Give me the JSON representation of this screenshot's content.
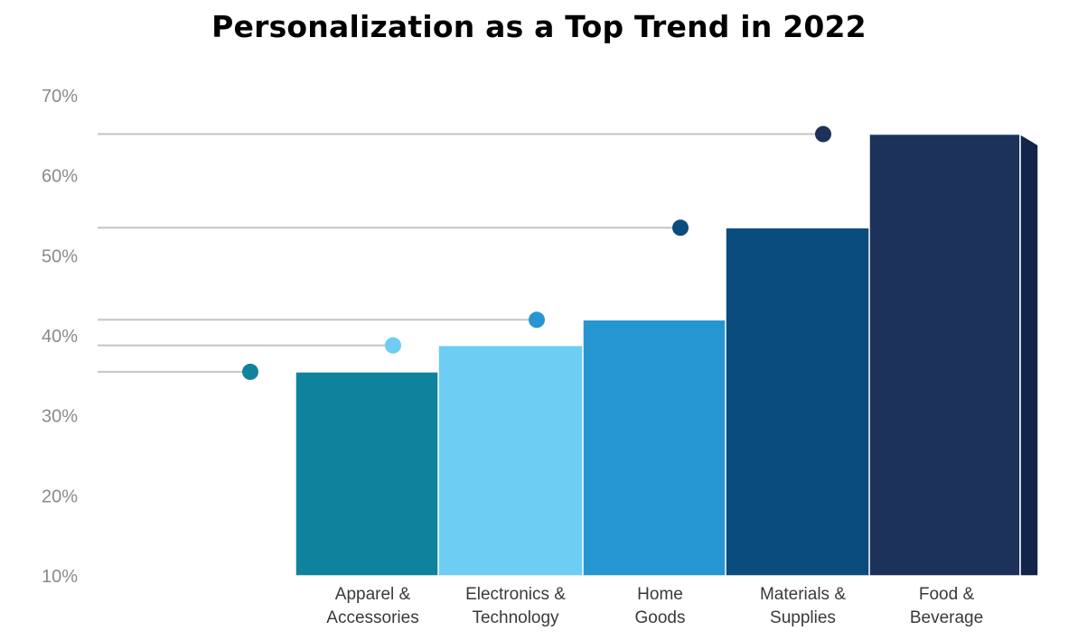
{
  "chart_data": {
    "type": "bar",
    "title": "Personalization as a Top Trend in 2022",
    "categories": [
      [
        "Apparel &",
        "Accessories"
      ],
      [
        "Electronics &",
        "Technology"
      ],
      [
        "Home",
        "Goods"
      ],
      [
        "Materials &",
        "Supplies"
      ],
      [
        "Food &",
        "Beverage"
      ]
    ],
    "values": [
      35.5,
      38.8,
      42.0,
      53.5,
      65.2
    ],
    "yticks": [
      "10%",
      "20%",
      "30%",
      "40%",
      "50%",
      "60%",
      "70%"
    ],
    "ylim": [
      10,
      70
    ],
    "xlabel": "",
    "ylabel": "",
    "grid": false,
    "legend": "none",
    "colors": {
      "front": [
        "#0f829e",
        "#6dcdf2",
        "#2596d2",
        "#0a4c7d",
        "#1c325b"
      ],
      "side": [
        "#1a5f77",
        "#5aaace",
        "#1f7fb4",
        "#0a3e65",
        "#13244a"
      ],
      "dot": [
        "#0f829e",
        "#6dcdf2",
        "#2596d2",
        "#0a4c7d",
        "#1c325b"
      ],
      "leader": "#c4c4c4",
      "axis_text": "#8a8a8a",
      "label_text": "#3a3a3a"
    }
  }
}
